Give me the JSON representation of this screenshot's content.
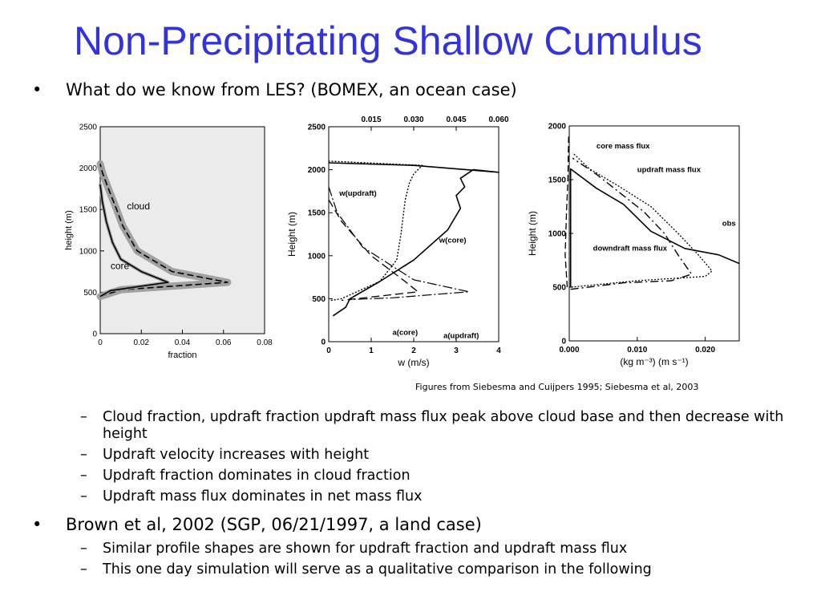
{
  "slide": {
    "title": "Non-Precipitating Shallow Cumulus",
    "bullet1": "What do we know from LES?  (BOMEX, an ocean case)",
    "caption": "Figures from Siebesma and Cuijpers 1995; Siebesma et al, 2003",
    "subbullets1": [
      "Cloud fraction, updraft fraction updraft mass flux peak above cloud base and then decrease with height",
      "Updraft velocity increases with height",
      "Updraft fraction dominates in cloud fraction",
      "Updraft mass flux dominates in net mass flux"
    ],
    "bullet2": "Brown et al, 2002 (SGP, 06/21/1997, a land case)",
    "subbullets2": [
      "Similar profile shapes are shown for updraft fraction and updraft mass flux",
      "This one day simulation will serve as a qualitative comparison in the following"
    ],
    "bullet_char": "•",
    "dash_char": "–"
  },
  "colors": {
    "title": "#3333dd",
    "shade": "#999999"
  },
  "chart_data": [
    {
      "type": "line",
      "xlabel": "fraction",
      "ylabel": "height (m)",
      "xlim": [
        0,
        0.08
      ],
      "ylim": [
        0,
        2500
      ],
      "x_ticks": [
        "0",
        "0.02",
        "0.04",
        "0.06",
        "0.08"
      ],
      "y_ticks": [
        "0",
        "500",
        "1000",
        "1500",
        "2000",
        "2500"
      ],
      "annotations": [
        "cloud",
        "core"
      ],
      "series": [
        {
          "name": "cloud",
          "points": [
            [
              0,
              450
            ],
            [
              0.01,
              530
            ],
            [
              0.062,
              620
            ],
            [
              0.035,
              750
            ],
            [
              0.018,
              1000
            ],
            [
              0.011,
              1300
            ],
            [
              0.008,
              1500
            ],
            [
              0.004,
              1750
            ],
            [
              0.001,
              1950
            ],
            [
              0,
              2050
            ]
          ]
        },
        {
          "name": "core",
          "points": [
            [
              0,
              450
            ],
            [
              0.005,
              520
            ],
            [
              0.033,
              620
            ],
            [
              0.02,
              750
            ],
            [
              0.01,
              900
            ],
            [
              0.006,
              1100
            ],
            [
              0.003,
              1350
            ],
            [
              0.001,
              1600
            ],
            [
              0,
              1800
            ]
          ]
        }
      ]
    },
    {
      "type": "line",
      "xlabel": "w (m/s)",
      "ylabel": "Height (m)",
      "xlim": [
        0,
        4
      ],
      "ylim": [
        0,
        2500
      ],
      "x_ticks": [
        "0",
        "1",
        "2",
        "3",
        "4"
      ],
      "y_ticks": [
        "0",
        "500",
        "1000",
        "1500",
        "2000",
        "2500"
      ],
      "top_ticks": [
        "0.015",
        "0.030",
        "0.045",
        "0.060"
      ],
      "annotations": [
        "w(updraft)",
        "w(core)",
        "a(core)",
        "a(updraft)"
      ],
      "series": [
        {
          "name": "w(core)",
          "points": [
            [
              0.1,
              300
            ],
            [
              0.4,
              400
            ],
            [
              0.5,
              500
            ],
            [
              1.2,
              700
            ],
            [
              2.0,
              950
            ],
            [
              2.8,
              1300
            ],
            [
              3.1,
              1550
            ],
            [
              3.0,
              1700
            ],
            [
              3.2,
              1800
            ],
            [
              3.1,
              1900
            ],
            [
              3.4,
              2000
            ],
            [
              4.0,
              1970
            ],
            [
              2.0,
              2050
            ],
            [
              0,
              2080
            ]
          ]
        },
        {
          "name": "w(updraft)",
          "points": [
            [
              0.05,
              480
            ],
            [
              0.3,
              500
            ],
            [
              1.2,
              700
            ],
            [
              1.6,
              950
            ],
            [
              1.7,
              1250
            ],
            [
              1.8,
              1650
            ],
            [
              1.9,
              1850
            ],
            [
              2.0,
              1950
            ],
            [
              2.2,
              2050
            ],
            [
              0,
              2100
            ]
          ]
        },
        {
          "name": "a(core)",
          "points": [
            [
              0,
              1650
            ],
            [
              0.3,
              1400
            ],
            [
              1.0,
              1000
            ],
            [
              1.8,
              700
            ],
            [
              2.1,
              580
            ],
            [
              1.0,
              520
            ],
            [
              0.3,
              480
            ]
          ]
        },
        {
          "name": "a(updraft)",
          "points": [
            [
              0,
              1800
            ],
            [
              0.2,
              1500
            ],
            [
              0.8,
              1100
            ],
            [
              2.0,
              720
            ],
            [
              3.3,
              580
            ],
            [
              1.5,
              510
            ],
            [
              0.5,
              490
            ]
          ]
        }
      ]
    },
    {
      "type": "line",
      "xlabel": "(kg m⁻³) (m s⁻¹)",
      "ylabel": "Height (m)",
      "xlim": [
        0,
        0.025
      ],
      "ylim": [
        0,
        2000
      ],
      "x_ticks": [
        "0.000",
        "0.010",
        "0.020"
      ],
      "y_ticks": [
        "0",
        "500",
        "1000",
        "1500",
        "2000"
      ],
      "annotations": [
        "core mass flux",
        "updraft mass flux",
        "obs",
        "downdraft mass flux"
      ],
      "series": [
        {
          "name": "obs",
          "points": [
            [
              0.0002,
              500
            ],
            [
              0.0002,
              1600
            ],
            [
              0.004,
              1420
            ],
            [
              0.008,
              1270
            ],
            [
              0.012,
              1020
            ],
            [
              0.017,
              860
            ],
            [
              0.022,
              800
            ],
            [
              0.025,
              720
            ]
          ]
        },
        {
          "name": "core mass flux",
          "points": [
            [
              0.0002,
              480
            ],
            [
              0.008,
              540
            ],
            [
              0.015,
              560
            ],
            [
              0.018,
              620
            ],
            [
              0.016,
              800
            ],
            [
              0.014,
              1000
            ],
            [
              0.011,
              1200
            ],
            [
              0.007,
              1400
            ],
            [
              0.004,
              1550
            ],
            [
              0.0005,
              1700
            ]
          ]
        },
        {
          "name": "updraft mass flux",
          "points": [
            [
              0.0003,
              500
            ],
            [
              0.01,
              560
            ],
            [
              0.02,
              600
            ],
            [
              0.021,
              650
            ],
            [
              0.019,
              800
            ],
            [
              0.016,
              1000
            ],
            [
              0.012,
              1250
            ],
            [
              0.007,
              1450
            ],
            [
              0.003,
              1600
            ],
            [
              0.0005,
              1750
            ]
          ]
        },
        {
          "name": "downdraft mass flux",
          "points": [
            [
              -0.0003,
              500
            ],
            [
              -0.0006,
              800
            ],
            [
              -0.0004,
              1200
            ],
            [
              -0.0002,
              1500
            ],
            [
              -0.0001,
              1900
            ]
          ]
        }
      ]
    }
  ]
}
